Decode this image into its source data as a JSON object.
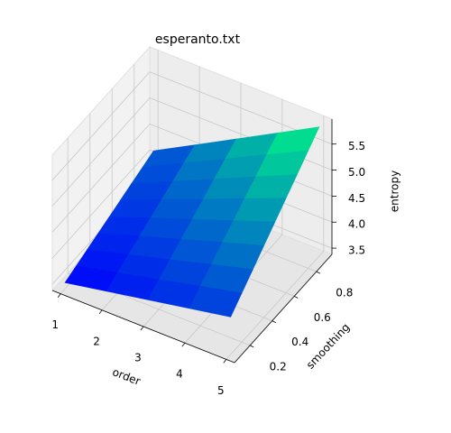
{
  "chart_data": {
    "type": "surface",
    "title": "esperanto.txt",
    "xlabel": "order",
    "ylabel": "smoothing",
    "zlabel": "entropy",
    "x": [
      1,
      2,
      3,
      4,
      5
    ],
    "y": [
      0.1,
      0.2,
      0.3,
      0.4,
      0.5,
      0.6,
      0.7,
      0.8,
      0.9
    ],
    "values": [
      [
        3.5,
        3.65,
        3.8,
        3.95,
        4.1
      ],
      [
        3.58,
        3.77,
        3.95,
        4.14,
        4.32
      ],
      [
        3.66,
        3.88,
        4.1,
        4.32,
        4.54
      ],
      [
        3.74,
        4.0,
        4.25,
        4.51,
        4.76
      ],
      [
        3.82,
        4.11,
        4.4,
        4.69,
        4.98
      ],
      [
        3.9,
        4.23,
        4.55,
        4.88,
        5.2
      ],
      [
        3.98,
        4.34,
        4.7,
        5.06,
        5.42
      ],
      [
        4.06,
        4.46,
        4.85,
        5.25,
        5.64
      ],
      [
        4.14,
        4.57,
        5.0,
        5.43,
        5.86
      ]
    ],
    "colormap": [
      "#0000ff",
      "#00ff80"
    ],
    "xlim": [
      0.8,
      5.2
    ],
    "ylim": [
      0.06,
      0.94
    ],
    "zlim": [
      3.38,
      5.98
    ],
    "xticks": [
      1,
      2,
      3,
      4,
      5
    ],
    "yticks": [
      0.2,
      0.4,
      0.6,
      0.8
    ],
    "zticks": [
      {
        "value": 3.5,
        "label": "3.5"
      },
      {
        "value": 4.0,
        "label": "4.0"
      },
      {
        "value": 4.5,
        "label": "4.5"
      },
      {
        "value": 5.0,
        "label": "5.0"
      },
      {
        "value": 5.5,
        "label": "5.5"
      }
    ],
    "grid": true
  }
}
